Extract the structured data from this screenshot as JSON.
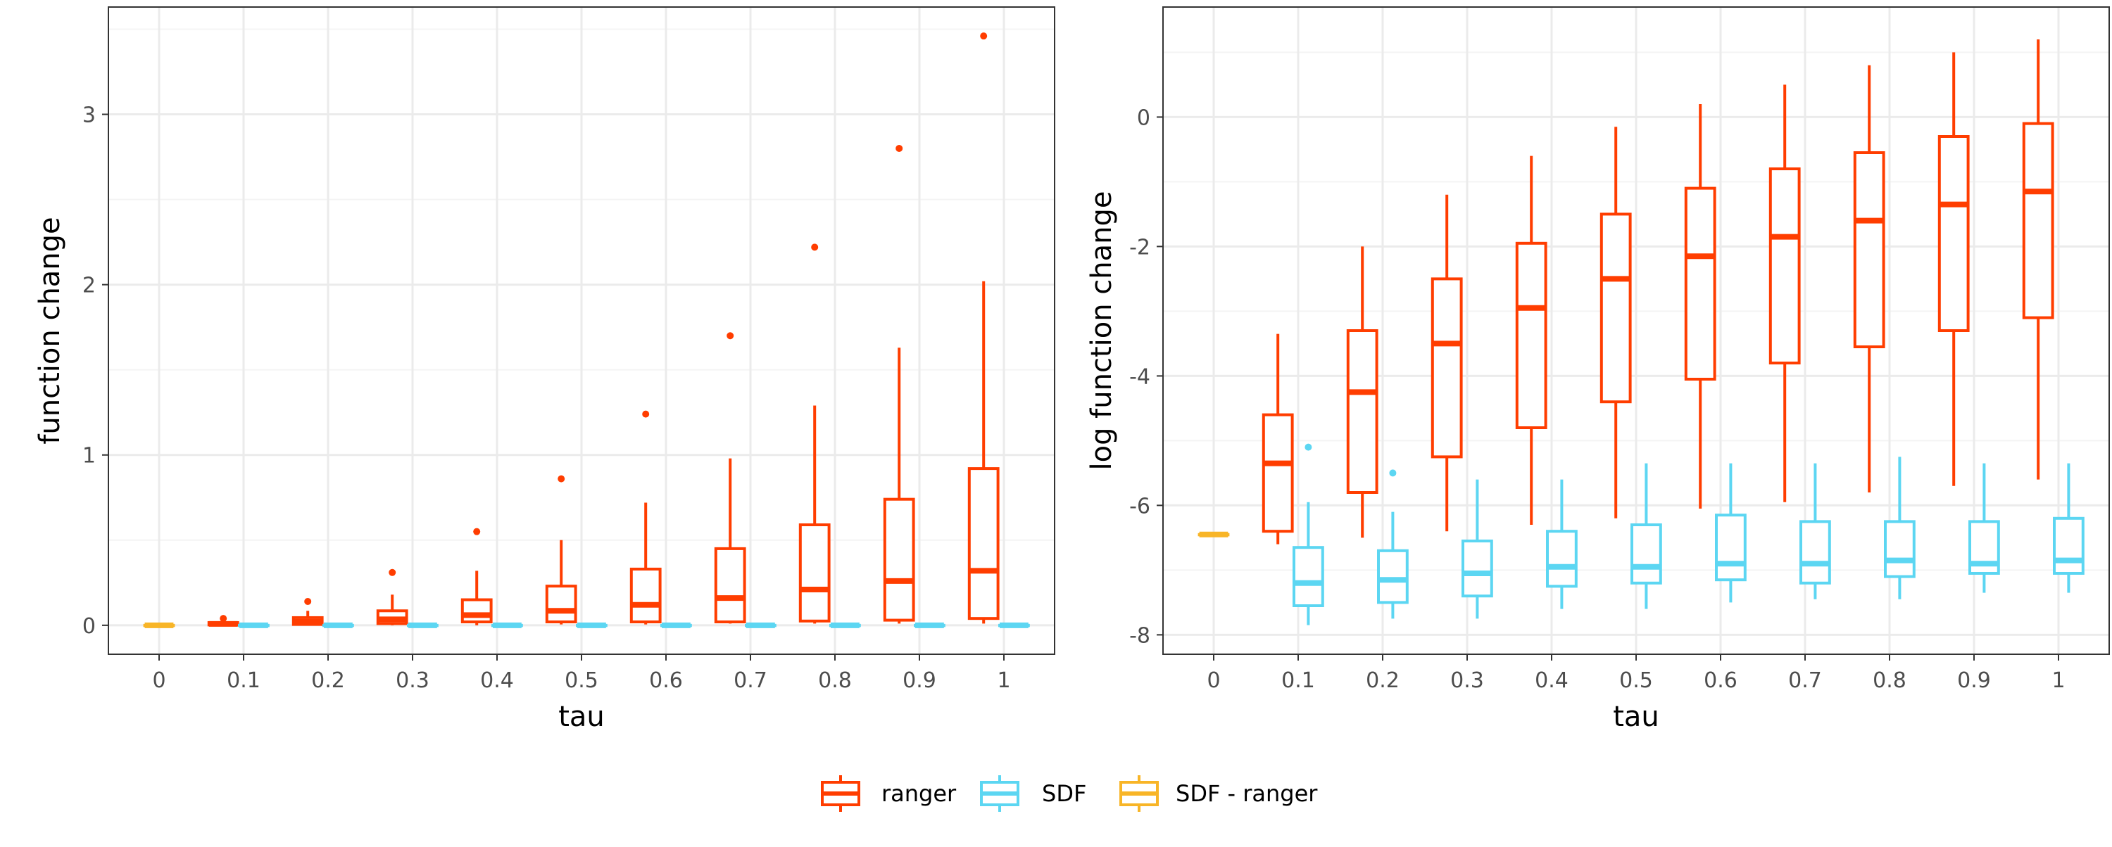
{
  "colors": {
    "ranger": "#FF3D00",
    "SDF": "#5CD6F2",
    "SDF - ranger": "#F8B527",
    "grid_major": "#EBEBEB",
    "grid_minor": "#F4F4F4",
    "axis_text": "#4D4D4D",
    "frame": "#333333"
  },
  "legend": {
    "position": "bottom",
    "items": [
      {
        "label": "ranger",
        "color": "#FF3D00"
      },
      {
        "label": "SDF",
        "color": "#5CD6F2"
      },
      {
        "label": "SDF - ranger",
        "color": "#F8B527"
      }
    ]
  },
  "chart_data": [
    {
      "type": "boxplot",
      "title": "",
      "xlabel": "tau",
      "ylabel": "function change",
      "categories": [
        "0",
        "0.1",
        "0.2",
        "0.3",
        "0.4",
        "0.5",
        "0.6",
        "0.7",
        "0.8",
        "0.9",
        "1"
      ],
      "ylim": [
        -0.17,
        3.63
      ],
      "yticks": [
        0,
        1,
        2,
        3
      ],
      "grid": true,
      "series": [
        {
          "name": "ranger",
          "boxes": [
            null,
            {
              "lower": 0.0,
              "q1": 0.002,
              "median": 0.008,
              "q3": 0.016,
              "upper": 0.03,
              "outliers": [
                0.04
              ]
            },
            {
              "lower": 0.0,
              "q1": 0.005,
              "median": 0.02,
              "q3": 0.045,
              "upper": 0.085,
              "outliers": [
                0.14
              ]
            },
            {
              "lower": 0.0,
              "q1": 0.01,
              "median": 0.035,
              "q3": 0.085,
              "upper": 0.18,
              "outliers": [
                0.31
              ]
            },
            {
              "lower": 0.0,
              "q1": 0.02,
              "median": 0.06,
              "q3": 0.15,
              "upper": 0.32,
              "outliers": [
                0.55
              ]
            },
            {
              "lower": 0.005,
              "q1": 0.02,
              "median": 0.085,
              "q3": 0.23,
              "upper": 0.5,
              "outliers": [
                0.86
              ]
            },
            {
              "lower": 0.005,
              "q1": 0.02,
              "median": 0.12,
              "q3": 0.33,
              "upper": 0.72,
              "outliers": [
                1.24
              ]
            },
            {
              "lower": 0.01,
              "q1": 0.02,
              "median": 0.16,
              "q3": 0.45,
              "upper": 0.98,
              "outliers": [
                1.7
              ]
            },
            {
              "lower": 0.01,
              "q1": 0.025,
              "median": 0.21,
              "q3": 0.59,
              "upper": 1.29,
              "outliers": [
                2.22
              ]
            },
            {
              "lower": 0.01,
              "q1": 0.03,
              "median": 0.26,
              "q3": 0.74,
              "upper": 1.63,
              "outliers": [
                2.8
              ]
            },
            {
              "lower": 0.01,
              "q1": 0.04,
              "median": 0.32,
              "q3": 0.92,
              "upper": 2.02,
              "outliers": [
                3.46
              ]
            }
          ]
        },
        {
          "name": "SDF",
          "boxes": [
            null,
            {
              "lower": 0.0,
              "q1": 0.0,
              "median": 0.0,
              "q3": 0.0,
              "upper": 0.0,
              "outliers": []
            },
            {
              "lower": 0.0,
              "q1": 0.0,
              "median": 0.0,
              "q3": 0.0,
              "upper": 0.0,
              "outliers": []
            },
            {
              "lower": 0.0,
              "q1": 0.0,
              "median": 0.0,
              "q3": 0.0,
              "upper": 0.0,
              "outliers": []
            },
            {
              "lower": 0.0,
              "q1": 0.0,
              "median": 0.0,
              "q3": 0.0,
              "upper": 0.0,
              "outliers": []
            },
            {
              "lower": 0.0,
              "q1": 0.0,
              "median": 0.0,
              "q3": 0.0,
              "upper": 0.0,
              "outliers": []
            },
            {
              "lower": 0.0,
              "q1": 0.0,
              "median": 0.0,
              "q3": 0.0,
              "upper": 0.0,
              "outliers": []
            },
            {
              "lower": 0.0,
              "q1": 0.0,
              "median": 0.0,
              "q3": 0.0,
              "upper": 0.0,
              "outliers": []
            },
            {
              "lower": 0.0,
              "q1": 0.0,
              "median": 0.0,
              "q3": 0.0,
              "upper": 0.0,
              "outliers": []
            },
            {
              "lower": 0.0,
              "q1": 0.0,
              "median": 0.0,
              "q3": 0.0,
              "upper": 0.0,
              "outliers": []
            },
            {
              "lower": 0.0,
              "q1": 0.0,
              "median": 0.0,
              "q3": 0.0,
              "upper": 0.0,
              "outliers": []
            }
          ]
        },
        {
          "name": "SDF - ranger",
          "boxes": [
            {
              "lower": 0.0,
              "q1": 0.0,
              "median": 0.0,
              "q3": 0.0,
              "upper": 0.0,
              "outliers": []
            },
            null,
            null,
            null,
            null,
            null,
            null,
            null,
            null,
            null,
            null
          ]
        }
      ]
    },
    {
      "type": "boxplot",
      "title": "",
      "xlabel": "tau",
      "ylabel": "log function change",
      "categories": [
        "0",
        "0.1",
        "0.2",
        "0.3",
        "0.4",
        "0.5",
        "0.6",
        "0.7",
        "0.8",
        "0.9",
        "1"
      ],
      "ylim": [
        -8.3,
        1.7
      ],
      "yticks": [
        -8,
        -6,
        -4,
        -2,
        0
      ],
      "grid": true,
      "series": [
        {
          "name": "ranger",
          "boxes": [
            null,
            {
              "lower": -6.6,
              "q1": -6.4,
              "median": -5.35,
              "q3": -4.6,
              "upper": -3.35,
              "outliers": []
            },
            {
              "lower": -6.5,
              "q1": -5.8,
              "median": -4.25,
              "q3": -3.3,
              "upper": -2.0,
              "outliers": []
            },
            {
              "lower": -6.4,
              "q1": -5.25,
              "median": -3.5,
              "q3": -2.5,
              "upper": -1.2,
              "outliers": []
            },
            {
              "lower": -6.3,
              "q1": -4.8,
              "median": -2.95,
              "q3": -1.95,
              "upper": -0.6,
              "outliers": []
            },
            {
              "lower": -6.2,
              "q1": -4.4,
              "median": -2.5,
              "q3": -1.5,
              "upper": -0.15,
              "outliers": []
            },
            {
              "lower": -6.05,
              "q1": -4.05,
              "median": -2.15,
              "q3": -1.1,
              "upper": 0.2,
              "outliers": []
            },
            {
              "lower": -5.95,
              "q1": -3.8,
              "median": -1.85,
              "q3": -0.8,
              "upper": 0.5,
              "outliers": []
            },
            {
              "lower": -5.8,
              "q1": -3.55,
              "median": -1.6,
              "q3": -0.55,
              "upper": 0.8,
              "outliers": []
            },
            {
              "lower": -5.7,
              "q1": -3.3,
              "median": -1.35,
              "q3": -0.3,
              "upper": 1.0,
              "outliers": []
            },
            {
              "lower": -5.6,
              "q1": -3.1,
              "median": -1.15,
              "q3": -0.1,
              "upper": 1.2,
              "outliers": []
            }
          ]
        },
        {
          "name": "SDF",
          "boxes": [
            null,
            {
              "lower": -7.85,
              "q1": -7.55,
              "median": -7.2,
              "q3": -6.65,
              "upper": -5.95,
              "outliers": [
                -5.1
              ]
            },
            {
              "lower": -7.75,
              "q1": -7.5,
              "median": -7.15,
              "q3": -6.7,
              "upper": -6.1,
              "outliers": [
                -5.5
              ]
            },
            {
              "lower": -7.75,
              "q1": -7.4,
              "median": -7.05,
              "q3": -6.55,
              "upper": -5.6,
              "outliers": []
            },
            {
              "lower": -7.6,
              "q1": -7.25,
              "median": -6.95,
              "q3": -6.4,
              "upper": -5.6,
              "outliers": []
            },
            {
              "lower": -7.6,
              "q1": -7.2,
              "median": -6.95,
              "q3": -6.3,
              "upper": -5.35,
              "outliers": []
            },
            {
              "lower": -7.5,
              "q1": -7.15,
              "median": -6.9,
              "q3": -6.15,
              "upper": -5.35,
              "outliers": []
            },
            {
              "lower": -7.45,
              "q1": -7.2,
              "median": -6.9,
              "q3": -6.25,
              "upper": -5.35,
              "outliers": []
            },
            {
              "lower": -7.45,
              "q1": -7.1,
              "median": -6.85,
              "q3": -6.25,
              "upper": -5.25,
              "outliers": []
            },
            {
              "lower": -7.35,
              "q1": -7.05,
              "median": -6.9,
              "q3": -6.25,
              "upper": -5.35,
              "outliers": []
            },
            {
              "lower": -7.35,
              "q1": -7.05,
              "median": -6.85,
              "q3": -6.2,
              "upper": -5.35,
              "outliers": []
            }
          ]
        },
        {
          "name": "SDF - ranger",
          "boxes": [
            {
              "lower": -6.45,
              "q1": -6.45,
              "median": -6.45,
              "q3": -6.45,
              "upper": -6.45,
              "outliers": []
            },
            null,
            null,
            null,
            null,
            null,
            null,
            null,
            null,
            null,
            null
          ]
        }
      ]
    }
  ]
}
